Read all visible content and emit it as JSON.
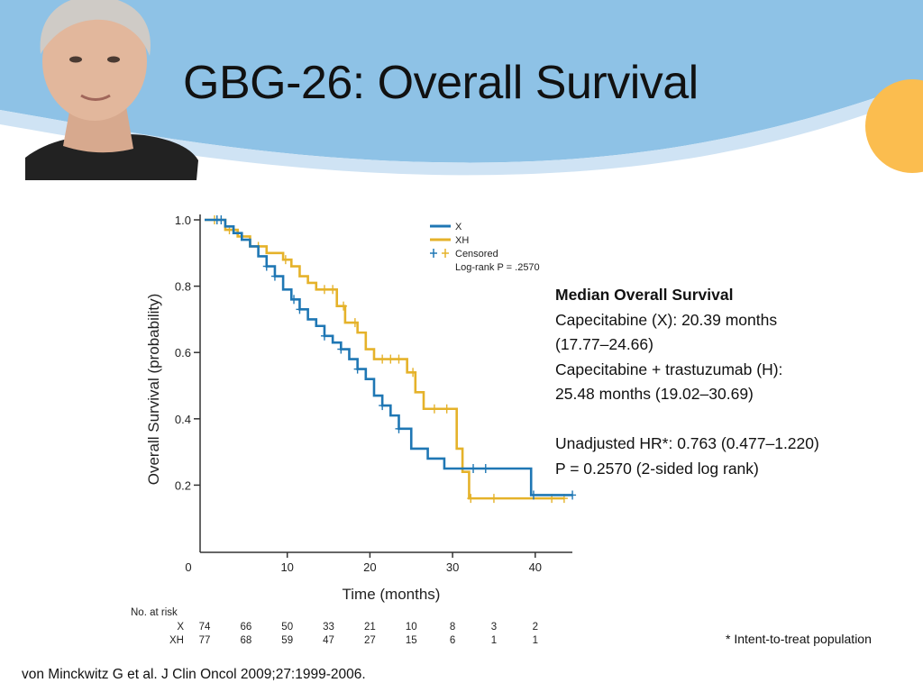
{
  "slide": {
    "title": "GBG-26: Overall Survival",
    "footnote": "* Intent-to-treat population",
    "citation": "von Minckwitz G et al. J Clin Oncol 2009;27:1999-2006."
  },
  "info_panel": {
    "heading": "Median Overall Survival",
    "lines": [
      "Capecitabine (X): 20.39 months",
      "(17.77–24.66)",
      "Capecitabine + trastuzumab (H):",
      "25.48 months (19.02–30.69)",
      "",
      "Unadjusted HR*: 0.763 (0.477–1.220)",
      "P = 0.2570 (2-sided log rank)"
    ]
  },
  "colors": {
    "banner_sky": "#8ec2e6",
    "banner_wave": "#cfe3f4",
    "sun": "#fbbd4f",
    "series_x": "#1f77b4",
    "series_xh": "#e5b22a"
  },
  "chart_data": {
    "type": "line",
    "step": true,
    "ylabel": "Overall Survival (probability)",
    "xlabel": "Time (months)",
    "xlim": [
      0,
      45
    ],
    "ylim": [
      0,
      1.0
    ],
    "x_ticks": [
      "0",
      "10",
      "20",
      "30",
      "40"
    ],
    "y_ticks": [
      "1.0",
      "0.8",
      "0.6",
      "0.4",
      "0.2"
    ],
    "legend": {
      "placement": "top-right",
      "entries": [
        "X",
        "XH",
        "Censored"
      ],
      "annotation": "Log-rank P = .2570"
    },
    "series": [
      {
        "name": "X",
        "x": [
          0,
          2.5,
          3.5,
          4.5,
          5.5,
          6.5,
          7.5,
          8.5,
          9.5,
          10.5,
          11.5,
          12.5,
          13.5,
          14.5,
          15.5,
          16.5,
          17.5,
          18.5,
          19.5,
          20.5,
          21.5,
          22.5,
          23.5,
          25,
          27,
          29,
          39.5,
          44.5
        ],
        "y": [
          1.0,
          0.98,
          0.96,
          0.94,
          0.92,
          0.89,
          0.86,
          0.83,
          0.79,
          0.76,
          0.73,
          0.7,
          0.68,
          0.65,
          0.63,
          0.61,
          0.58,
          0.55,
          0.52,
          0.47,
          0.44,
          0.41,
          0.37,
          0.31,
          0.28,
          0.25,
          0.17,
          0.17
        ],
        "censored_x": [
          1.5,
          2,
          7.5,
          8.5,
          10.8,
          11.5,
          14.5,
          16.5,
          18.5,
          21.5,
          23.5,
          32.5,
          34,
          39.8,
          44.5
        ]
      },
      {
        "name": "XH",
        "x": [
          0,
          2.5,
          4,
          5.5,
          7.5,
          9.5,
          10.5,
          11.5,
          12.5,
          13.5,
          16,
          17,
          18.5,
          19.5,
          20.5,
          24.5,
          25.5,
          26.5,
          30.5,
          31.2,
          32,
          43.5
        ],
        "y": [
          1.0,
          0.97,
          0.95,
          0.92,
          0.9,
          0.88,
          0.86,
          0.83,
          0.81,
          0.79,
          0.74,
          0.69,
          0.66,
          0.61,
          0.58,
          0.54,
          0.48,
          0.43,
          0.31,
          0.24,
          0.16,
          0.16
        ],
        "censored_x": [
          1.2,
          3,
          6.5,
          9.8,
          14.5,
          15.5,
          16.8,
          18.2,
          21.5,
          22.5,
          23.5,
          25.2,
          27.8,
          29.3,
          32.2,
          35,
          42,
          43.5
        ]
      }
    ],
    "at_risk": {
      "label": "No. at risk",
      "times": [
        0,
        5,
        10,
        15,
        20,
        25,
        30,
        35,
        40
      ],
      "rows": [
        {
          "name": "X",
          "counts": [
            "74",
            "66",
            "50",
            "33",
            "21",
            "10",
            "8",
            "3",
            "2"
          ]
        },
        {
          "name": "XH",
          "counts": [
            "77",
            "68",
            "59",
            "47",
            "27",
            "15",
            "6",
            "1",
            "1"
          ]
        }
      ]
    }
  }
}
